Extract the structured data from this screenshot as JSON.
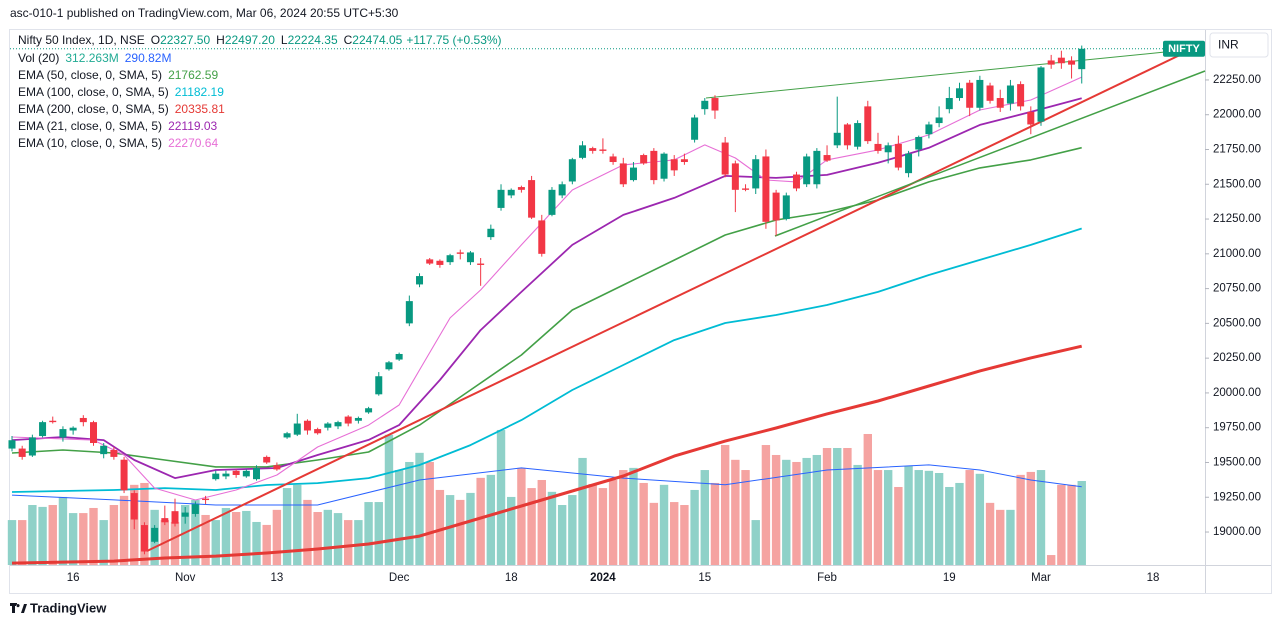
{
  "header": "asc-010-1 published on TradingView.com, Mar 06, 2024 20:55 UTC+5:30",
  "footer": "TradingView",
  "chart_data": {
    "type": "candlestick",
    "symbol_tag": "NIFTY",
    "currency": "INR",
    "legend": {
      "title": "Nifty 50 Index, 1D, NSE",
      "ohlc": [
        {
          "label": "O",
          "value": "22327.50"
        },
        {
          "label": "H",
          "value": "22497.20"
        },
        {
          "label": "L",
          "value": "22224.35"
        },
        {
          "label": "C",
          "value": "22474.05"
        }
      ],
      "change": "+117.75 (+0.53%)"
    },
    "up_color": "#089981",
    "down_color": "#f23645",
    "ylim": [
      18763,
      22609
    ],
    "yticks": [
      {
        "value": 19000,
        "label": "19000.00"
      },
      {
        "value": 19250,
        "label": "19250.00"
      },
      {
        "value": 19500,
        "label": "19500.00"
      },
      {
        "value": 19750,
        "label": "19750.00"
      },
      {
        "value": 20000,
        "label": "20000.00"
      },
      {
        "value": 20250,
        "label": "20250.00"
      },
      {
        "value": 20500,
        "label": "20500.00"
      },
      {
        "value": 20750,
        "label": "20750.00"
      },
      {
        "value": 21000,
        "label": "21000.00"
      },
      {
        "value": 21250,
        "label": "21250.00"
      },
      {
        "value": 21500,
        "label": "21500.00"
      },
      {
        "value": 21750,
        "label": "21750.00"
      },
      {
        "value": 22000,
        "label": "22000.00"
      },
      {
        "value": 22250,
        "label": "22250.00"
      }
    ],
    "grid": false,
    "categories": [
      null,
      null,
      null,
      null,
      null,
      null,
      "16",
      null,
      null,
      null,
      null,
      null,
      null,
      null,
      null,
      null,
      null,
      "Nov",
      null,
      null,
      null,
      null,
      null,
      null,
      null,
      null,
      "13",
      null,
      null,
      null,
      null,
      null,
      null,
      null,
      null,
      null,
      null,
      null,
      "Dec",
      null,
      null,
      null,
      null,
      null,
      null,
      null,
      null,
      null,
      null,
      "18",
      null,
      null,
      null,
      null,
      null,
      null,
      null,
      null,
      "2024",
      null,
      null,
      null,
      null,
      null,
      null,
      null,
      null,
      null,
      "15",
      null,
      null,
      null,
      null,
      null,
      null,
      null,
      null,
      null,
      null,
      null,
      "Feb",
      null,
      null,
      null,
      null,
      null,
      null,
      null,
      null,
      null,
      null,
      null,
      "19",
      null,
      null,
      null,
      null,
      null,
      null,
      null,
      null,
      "Mar",
      null,
      null,
      null,
      null,
      null,
      null,
      null,
      null,
      null,
      null,
      "18",
      null,
      null,
      null,
      null,
      null
    ],
    "open": [
      19600,
      19600,
      19550,
      19690,
      19800,
      19680,
      19730,
      19820,
      19790,
      19560,
      19590,
      19520,
      19280,
      19050,
      18930,
      19100,
      19150,
      19110,
      19130,
      19240,
      19380,
      19400,
      19440,
      19400,
      19380,
      19540,
      19480,
      19680,
      19700,
      19800,
      19740,
      19750,
      19760,
      19830,
      19800,
      19860,
      19990,
      20170,
      20240,
      20500,
      20780,
      20960,
      20950,
      20940,
      21010,
      20940,
      20930,
      21120,
      21330,
      21420,
      21480,
      21530,
      21240,
      21280,
      21420,
      21520,
      21690,
      21760,
      21750,
      21700,
      21650,
      21530,
      21710,
      21740,
      21540,
      21680,
      21680,
      21820,
      22040,
      22120,
      21800,
      21650,
      21470,
      21470,
      21700,
      21440,
      21250,
      21570,
      21500,
      21500,
      21710,
      21780,
      21930,
      21770,
      22060,
      21790,
      21730,
      21790,
      21580,
      21750,
      21860,
      21940,
      22040,
      22120,
      22230,
      22050,
      22210,
      22120,
      22080,
      22220,
      22020,
      21950,
      22390,
      22410,
      22390,
      22327.5,
      null,
      null,
      null,
      null,
      null,
      null,
      null,
      null,
      null,
      null,
      null,
      null
    ],
    "high": [
      19690,
      19620,
      19700,
      19800,
      19830,
      19760,
      19760,
      19840,
      19800,
      19640,
      19610,
      19540,
      19300,
      19070,
      19050,
      19190,
      19240,
      19180,
      19220,
      19260,
      19440,
      19440,
      19450,
      19450,
      19480,
      19550,
      19500,
      19720,
      19850,
      19810,
      19750,
      19790,
      19800,
      19840,
      19830,
      19900,
      20150,
      20230,
      20290,
      20700,
      20860,
      20970,
      20960,
      21000,
      21030,
      21020,
      20970,
      21210,
      21500,
      21470,
      21490,
      21560,
      21280,
      21480,
      21520,
      21690,
      21810,
      21770,
      21830,
      21720,
      21690,
      21660,
      21720,
      21760,
      21730,
      21710,
      21720,
      22000,
      22120,
      22140,
      21840,
      21670,
      21500,
      21710,
      21750,
      21460,
      21440,
      21590,
      21720,
      21760,
      21780,
      22130,
      21940,
      21960,
      22100,
      21870,
      21800,
      21850,
      21740,
      21850,
      21950,
      22060,
      22200,
      22230,
      22250,
      22280,
      22230,
      22180,
      22250,
      22240,
      22060,
      22350,
      22430,
      22460,
      22420,
      22497.2,
      null,
      null,
      null,
      null,
      null,
      null,
      null,
      null,
      null,
      null,
      null,
      null
    ],
    "low": [
      19580,
      19520,
      19540,
      19680,
      19780,
      19650,
      19700,
      19760,
      19620,
      19530,
      19520,
      19280,
      19020,
      18840,
      18920,
      19050,
      19040,
      19060,
      19110,
      19200,
      19370,
      19380,
      19390,
      19390,
      19370,
      19490,
      19440,
      19670,
      19690,
      19700,
      19700,
      19730,
      19740,
      19760,
      19780,
      19850,
      19980,
      20160,
      20230,
      20480,
      20760,
      20920,
      20900,
      20920,
      20960,
      20920,
      20770,
      21100,
      21310,
      21400,
      21440,
      21250,
      20980,
      21270,
      21400,
      21500,
      21680,
      21720,
      21720,
      21640,
      21480,
      21520,
      21640,
      21500,
      21520,
      21560,
      21640,
      21800,
      22000,
      21970,
      21550,
      21300,
      21450,
      21430,
      21180,
      21130,
      21240,
      21450,
      21480,
      21470,
      21660,
      21760,
      21750,
      21750,
      21790,
      21720,
      21650,
      21600,
      21550,
      21700,
      21830,
      21910,
      22010,
      22100,
      21990,
      22030,
      22080,
      22020,
      22030,
      22030,
      21860,
      21920,
      22330,
      22330,
      22260,
      22224.35,
      null,
      null,
      null,
      null,
      null,
      null,
      null,
      null,
      null,
      null,
      null,
      null
    ],
    "close": [
      19660,
      19540,
      19680,
      19790,
      19790,
      19740,
      19750,
      19790,
      19640,
      19620,
      19540,
      19300,
      19090,
      18860,
      19030,
      19070,
      19060,
      19140,
      19200,
      19230,
      19420,
      19420,
      19410,
      19440,
      19460,
      19500,
      19450,
      19710,
      19780,
      19730,
      19710,
      19780,
      19790,
      19780,
      19820,
      19890,
      20120,
      20220,
      20280,
      20660,
      20840,
      20930,
      20920,
      20990,
      21000,
      21010,
      20920,
      21180,
      21460,
      21460,
      21460,
      21260,
      21000,
      21460,
      21500,
      21680,
      21780,
      21740,
      21740,
      21660,
      21500,
      21620,
      21650,
      21530,
      21720,
      21600,
      21660,
      21980,
      22100,
      22030,
      21570,
      21460,
      21460,
      21680,
      21230,
      21240,
      21420,
      21470,
      21700,
      21740,
      21670,
      21870,
      21780,
      21940,
      21810,
      21740,
      21780,
      21620,
      21720,
      21840,
      21930,
      21980,
      22120,
      22190,
      22050,
      22250,
      22100,
      22050,
      22210,
      22060,
      21930,
      22340,
      22360,
      22370,
      22360,
      22474.05,
      null,
      null,
      null,
      null,
      null,
      null,
      null,
      null,
      null,
      null,
      null,
      null
    ],
    "volume": {
      "name": "Vol (20)",
      "last_label": "312.263M",
      "up_color": "#8fd1c8",
      "down_color": "#f5a3a1",
      "values": [
        167,
        167,
        223,
        216,
        223,
        253,
        193,
        193,
        212,
        167,
        223,
        257,
        298,
        305,
        205,
        167,
        160,
        223,
        242,
        186,
        167,
        212,
        197,
        201,
        160,
        149,
        205,
        286,
        298,
        242,
        197,
        205,
        193,
        167,
        167,
        234,
        234,
        484,
        353,
        383,
        417,
        383,
        279,
        260,
        242,
        268,
        324,
        335,
        502,
        253,
        361,
        286,
        316,
        272,
        223,
        260,
        398,
        301,
        286,
        316,
        353,
        361,
        305,
        231,
        298,
        234,
        223,
        279,
        353,
        305,
        446,
        391,
        353,
        167,
        446,
        409,
        391,
        383,
        398,
        409,
        435,
        435,
        435,
        372,
        487,
        353,
        353,
        290,
        368,
        353,
        350,
        342,
        290,
        305,
        353,
        339,
        231,
        205,
        205,
        335,
        346,
        353,
        37,
        298,
        298,
        312.263,
        null,
        null,
        null,
        null,
        null,
        null,
        null,
        null,
        null,
        null,
        null,
        null
      ],
      "ma": {
        "label": "290.82M",
        "color": "#2962ff",
        "x": [
          0,
          10,
          20,
          30,
          40,
          50,
          60,
          70,
          80,
          90,
          95,
          100,
          105
        ],
        "values": [
          260,
          242,
          223,
          223,
          316,
          361,
          323,
          298,
          353,
          372,
          353,
          316,
          290.82
        ]
      }
    },
    "series": [
      {
        "name": "EMA (50, close, 0, SMA, 5)",
        "color": "#43a047",
        "width": 1.6,
        "x": [
          0,
          5,
          10,
          15,
          20,
          25,
          30,
          35,
          40,
          45,
          50,
          55,
          60,
          65,
          70,
          75,
          80,
          85,
          90,
          95,
          100,
          105
        ],
        "values": [
          19568,
          19590,
          19568,
          19518,
          19468,
          19468,
          19518,
          19575,
          19769,
          20021,
          20273,
          20596,
          20776,
          20955,
          21135,
          21243,
          21301,
          21387,
          21517,
          21618,
          21675,
          21762.59
        ]
      },
      {
        "name": "EMA (100, close, 0, SMA, 5)",
        "color": "#00bcd4",
        "width": 1.8,
        "x": [
          0,
          10,
          15,
          20,
          25,
          30,
          35,
          40,
          45,
          50,
          55,
          60,
          65,
          70,
          75,
          80,
          85,
          90,
          95,
          100,
          105
        ],
        "values": [
          19288,
          19302,
          19316,
          19302,
          19338,
          19352,
          19388,
          19482,
          19625,
          19805,
          20021,
          20201,
          20380,
          20503,
          20560,
          20632,
          20726,
          20848,
          20956,
          21064,
          21182.19
        ]
      },
      {
        "name": "EMA (200, close, 0, SMA, 5)",
        "color": "#e53935",
        "width": 3,
        "x": [
          0,
          5,
          10,
          15,
          20,
          25,
          30,
          35,
          40,
          45,
          50,
          55,
          60,
          65,
          70,
          75,
          80,
          85,
          90,
          95,
          100,
          105
        ],
        "values": [
          18777,
          18784,
          18791,
          18813,
          18827,
          18849,
          18878,
          18914,
          18971,
          19079,
          19187,
          19295,
          19403,
          19546,
          19654,
          19748,
          19849,
          19942,
          20050,
          20158,
          20252,
          20335.81
        ]
      },
      {
        "name": "EMA (21, close, 0, SMA, 5)",
        "color": "#9c27b0",
        "width": 1.8,
        "x": [
          0,
          5,
          9,
          12,
          16,
          20,
          26,
          30,
          35,
          38,
          42,
          46,
          50,
          55,
          60,
          65,
          70,
          75,
          80,
          85,
          90,
          95,
          100,
          105
        ],
        "values": [
          19661,
          19683,
          19661,
          19518,
          19388,
          19446,
          19460,
          19554,
          19662,
          19769,
          20093,
          20452,
          20726,
          21064,
          21280,
          21402,
          21560,
          21546,
          21567,
          21654,
          21762,
          21927,
          22020,
          22119.03
        ]
      },
      {
        "name": "EMA (10, close, 0, SMA, 5)",
        "color": "#e76fd6",
        "width": 1.1,
        "x": [
          0,
          8,
          11,
          14,
          18,
          22,
          26,
          30,
          35,
          38,
          40,
          43,
          46,
          50,
          55,
          60,
          65,
          68,
          71,
          74,
          77,
          80,
          85,
          90,
          95,
          100,
          105
        ],
        "values": [
          19683,
          19661,
          19554,
          19316,
          19230,
          19302,
          19410,
          19611,
          19769,
          19913,
          20165,
          20539,
          20740,
          21064,
          21459,
          21639,
          21675,
          21783,
          21689,
          21531,
          21517,
          21675,
          21747,
          21855,
          22034,
          22106,
          22270.64
        ]
      }
    ]
  }
}
